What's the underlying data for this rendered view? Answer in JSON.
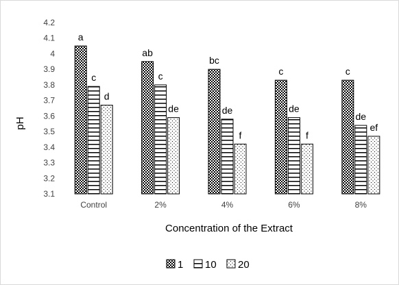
{
  "chart_data": {
    "type": "bar",
    "title": "",
    "xlabel": "Concentration of the Extract",
    "ylabel": "pH",
    "ylim": [
      3.1,
      4.2
    ],
    "y_ticks": [
      3.1,
      3.2,
      3.3,
      3.4,
      3.5,
      3.6,
      3.7,
      3.8,
      3.9,
      4,
      4.1,
      4.2
    ],
    "grid": false,
    "legend_position": "bottom",
    "categories": [
      "Control",
      "2%",
      "4%",
      "6%",
      "8%"
    ],
    "series": [
      {
        "name": "1",
        "pattern": "checker",
        "values": [
          4.05,
          3.95,
          3.9,
          3.83,
          3.83
        ],
        "labels": [
          "a",
          "ab",
          "bc",
          "c",
          "c"
        ]
      },
      {
        "name": "10",
        "pattern": "horizontal-lines",
        "values": [
          3.79,
          3.8,
          3.58,
          3.59,
          3.54
        ],
        "labels": [
          "c",
          "c",
          "de",
          "de",
          "de"
        ]
      },
      {
        "name": "20",
        "pattern": "dots",
        "values": [
          3.67,
          3.59,
          3.42,
          3.42,
          3.47
        ],
        "labels": [
          "d",
          "de",
          "f",
          "f",
          "ef"
        ]
      }
    ]
  }
}
